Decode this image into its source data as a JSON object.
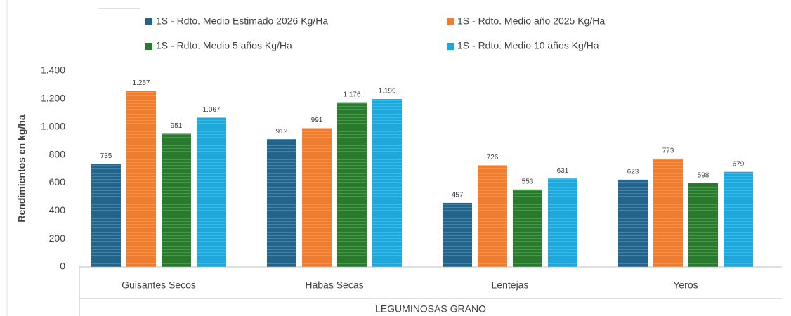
{
  "chart_data": {
    "type": "bar",
    "y_label": "Rendimientos en kg/ha",
    "group_label": "LEGUMINOSAS GRANO",
    "categories": [
      "Guisantes Secos",
      "Habas Secas",
      "Lentejas",
      "Yeros"
    ],
    "series": [
      {
        "name": "1S - Rdto. Medio Estimado 2026 Kg/Ha",
        "color": "#25648a",
        "values": [
          735,
          912,
          457,
          623
        ],
        "value_labels": [
          "735",
          "912",
          "457",
          "623"
        ]
      },
      {
        "name": "1S - Rdto. Medio año 2025 Kg/Ha",
        "color": "#ed7d31",
        "values": [
          1257,
          991,
          726,
          773
        ],
        "value_labels": [
          "1.257",
          "991",
          "726",
          "773"
        ]
      },
      {
        "name": "1S - Rdto. Medio 5 años Kg/Ha",
        "color": "#2a7a2e",
        "values": [
          951,
          1176,
          553,
          598
        ],
        "value_labels": [
          "951",
          "1.176",
          "553",
          "598"
        ]
      },
      {
        "name": "1S - Rdto. Medio 10 años Kg/Ha",
        "color": "#1fa7d9",
        "values": [
          1067,
          1199,
          631,
          679
        ],
        "value_labels": [
          "1.067",
          "1.199",
          "631",
          "679"
        ]
      }
    ],
    "ylim": [
      0,
      1400
    ],
    "yticks": [
      0,
      200,
      400,
      600,
      800,
      {
        "value": 1000,
        "label": "1.000"
      },
      {
        "value": 1200,
        "label": "1.200"
      },
      {
        "value": 1400,
        "label": "1.400"
      }
    ],
    "grid": false
  }
}
